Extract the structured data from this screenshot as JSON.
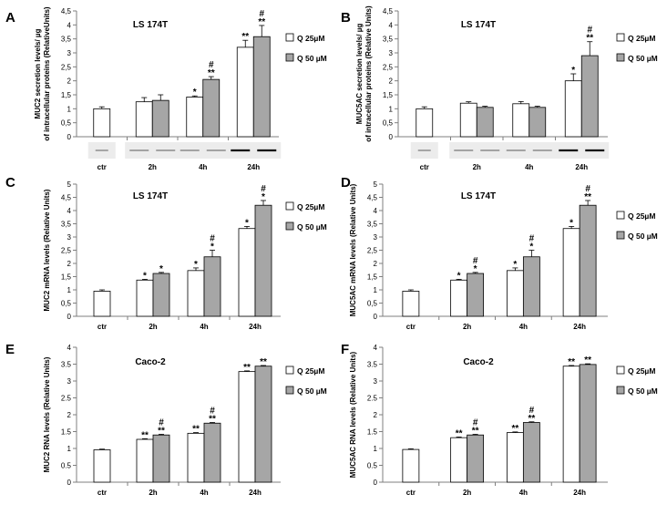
{
  "chart_data": [
    {
      "panel": "A",
      "type": "bar",
      "title": "LS 174T",
      "ylabel_lines": [
        "MUC2  secretion  levels/ µg",
        "of intracellular proteins (RelativeUnits)"
      ],
      "ylim": [
        0,
        4.5
      ],
      "yticks": [
        "0",
        "0,5",
        "1",
        "1,5",
        "2",
        "2,5",
        "3",
        "3,5",
        "4",
        "4,5"
      ],
      "categories": [
        "ctr",
        "2h",
        "4h",
        "24h"
      ],
      "ctr": {
        "value": 1.0,
        "err": 0.07,
        "marks": []
      },
      "series": [
        {
          "name": "Q 25µM",
          "values": [
            null,
            1.25,
            1.42,
            3.2
          ],
          "errors": [
            null,
            0.15,
            0.04,
            0.25
          ],
          "marks": [
            [],
            [],
            [
              "*"
            ],
            [
              "**"
            ]
          ]
        },
        {
          "name": "Q 50 µM",
          "values": [
            null,
            1.3,
            2.05,
            3.58
          ],
          "errors": [
            null,
            0.2,
            0.1,
            0.4
          ],
          "marks": [
            [],
            [],
            [
              "#",
              "**"
            ],
            [
              "#",
              "**"
            ]
          ]
        }
      ],
      "legend": [
        "Q 25µM",
        "Q 50 µM"
      ],
      "blots": true
    },
    {
      "panel": "B",
      "type": "bar",
      "title": "LS 174T",
      "ylabel_lines": [
        "MUC5AC  secretion  levels/ µg",
        "of intracellular proteins (Relative Units)"
      ],
      "ylim": [
        0,
        4.5
      ],
      "yticks": [
        "0",
        "0,5",
        "1",
        "1,5",
        "2",
        "2,5",
        "3",
        "3,5",
        "4",
        "4,5"
      ],
      "categories": [
        "ctr",
        "2h",
        "4h",
        "24h"
      ],
      "ctr": {
        "value": 1.0,
        "err": 0.07,
        "marks": []
      },
      "series": [
        {
          "name": "Q 25µM",
          "values": [
            null,
            1.2,
            1.18,
            2.0
          ],
          "errors": [
            null,
            0.05,
            0.08,
            0.25
          ],
          "marks": [
            [],
            [],
            [],
            [
              "*"
            ]
          ]
        },
        {
          "name": "Q 50 µM",
          "values": [
            null,
            1.05,
            1.05,
            2.9
          ],
          "errors": [
            null,
            0.04,
            0.04,
            0.5
          ],
          "marks": [
            [],
            [],
            [],
            [
              "#",
              "**"
            ]
          ]
        }
      ],
      "legend": [
        "Q 25µM",
        "Q 50 µM"
      ],
      "blots": true
    },
    {
      "panel": "C",
      "type": "bar",
      "title": "LS 174T",
      "ylabel_lines": [
        "MUC2 mRNA levels (Relative Units)"
      ],
      "ylim": [
        0,
        5
      ],
      "yticks": [
        "0",
        "0,5",
        "1",
        "1,5",
        "2",
        "2,5",
        "3",
        "3,5",
        "4",
        "4,5",
        "5"
      ],
      "categories": [
        "ctr",
        "2h",
        "4h",
        "24h"
      ],
      "ctr": {
        "value": 0.95,
        "err": 0.05,
        "marks": []
      },
      "series": [
        {
          "name": "Q 25µM",
          "values": [
            null,
            1.37,
            1.73,
            3.32
          ],
          "errors": [
            null,
            0.03,
            0.1,
            0.08
          ],
          "marks": [
            [],
            [
              "*"
            ],
            [
              "*"
            ],
            [
              "*"
            ]
          ]
        },
        {
          "name": "Q 50 µM",
          "values": [
            null,
            1.62,
            2.25,
            4.2
          ],
          "errors": [
            null,
            0.04,
            0.25,
            0.18
          ],
          "marks": [
            [],
            [
              "*"
            ],
            [
              "#",
              "*"
            ],
            [
              "#",
              "*"
            ]
          ]
        }
      ],
      "legend": [
        "Q 25µM",
        "Q 50 µM"
      ],
      "blots": false
    },
    {
      "panel": "D",
      "type": "bar",
      "title": "LS 174T",
      "ylabel_lines": [
        "MUC5AC mRNA levels  (Relative Units)"
      ],
      "ylim": [
        0,
        5
      ],
      "yticks": [
        "0",
        "0,5",
        "1",
        "1,5",
        "2",
        "2,5",
        "3",
        "3,5",
        "4",
        "4,5",
        "5"
      ],
      "categories": [
        "ctr",
        "2h",
        "4h",
        "24h"
      ],
      "ctr": {
        "value": 0.95,
        "err": 0.05,
        "marks": []
      },
      "series": [
        {
          "name": "Q 25µM",
          "values": [
            null,
            1.37,
            1.73,
            3.32
          ],
          "errors": [
            null,
            0.03,
            0.1,
            0.08
          ],
          "marks": [
            [],
            [
              "*"
            ],
            [
              "*"
            ],
            [
              "*"
            ]
          ]
        },
        {
          "name": "Q 50 µM",
          "values": [
            null,
            1.62,
            2.25,
            4.2
          ],
          "errors": [
            null,
            0.04,
            0.25,
            0.18
          ],
          "marks": [
            [],
            [
              "#",
              "*"
            ],
            [
              "#",
              "*"
            ],
            [
              "#",
              "**"
            ]
          ]
        }
      ],
      "legend": [
        "Q 25µM",
        "Q 50 µM"
      ],
      "blots": false
    },
    {
      "panel": "E",
      "type": "bar",
      "title": "Caco-2",
      "ylabel_lines": [
        "MUC2 RNA levels (Relative Units)"
      ],
      "ylim": [
        0,
        4
      ],
      "yticks": [
        "0",
        "0.5",
        "1",
        "1.5",
        "2",
        "2.5",
        "3",
        "3.5",
        "4"
      ],
      "categories": [
        "ctr",
        "2h",
        "4h",
        "24h"
      ],
      "ctr": {
        "value": 0.96,
        "err": 0.02,
        "marks": []
      },
      "series": [
        {
          "name": "Q 25µM",
          "values": [
            null,
            1.27,
            1.45,
            3.28
          ],
          "errors": [
            null,
            0.02,
            0.02,
            0.02
          ],
          "marks": [
            [],
            [
              "**"
            ],
            [
              "**"
            ],
            [
              "**"
            ]
          ]
        },
        {
          "name": "Q 50 µM",
          "values": [
            null,
            1.4,
            1.75,
            3.44
          ],
          "errors": [
            null,
            0.02,
            0.02,
            0.02
          ],
          "marks": [
            [],
            [
              "#",
              "**"
            ],
            [
              "#",
              "**"
            ],
            [
              "**"
            ]
          ]
        }
      ],
      "legend": [
        "Q 25µM",
        "Q 50 µM"
      ],
      "blots": false
    },
    {
      "panel": "F",
      "type": "bar",
      "title": "Caco-2",
      "ylabel_lines": [
        "MUC5AC RNA levels (Relative Units)"
      ],
      "ylim": [
        0,
        4
      ],
      "yticks": [
        "0",
        "0.5",
        "1",
        "1.5",
        "2",
        "2.5",
        "3",
        "3.5",
        "4"
      ],
      "categories": [
        "ctr",
        "2h",
        "4h",
        "24h"
      ],
      "ctr": {
        "value": 0.97,
        "err": 0.02,
        "marks": []
      },
      "series": [
        {
          "name": "Q 25µM",
          "values": [
            null,
            1.32,
            1.47,
            3.44
          ],
          "errors": [
            null,
            0.02,
            0.02,
            0.02
          ],
          "marks": [
            [],
            [
              "**"
            ],
            [
              "**"
            ],
            [
              "**"
            ]
          ]
        },
        {
          "name": "Q 50 µM",
          "values": [
            null,
            1.4,
            1.77,
            3.49
          ],
          "errors": [
            null,
            0.02,
            0.02,
            0.02
          ],
          "marks": [
            [],
            [
              "#",
              "**"
            ],
            [
              "#",
              "**"
            ],
            [
              "**"
            ]
          ]
        }
      ],
      "legend": [
        "Q 25µM",
        "Q 50 µM"
      ],
      "blots": false
    }
  ],
  "colors": {
    "bar_25": "#ffffff",
    "bar_50": "#a6a6a6",
    "stroke": "#000000",
    "axis": "#7f7f7f",
    "blot_bg": "#ececec",
    "band": "#444444"
  }
}
